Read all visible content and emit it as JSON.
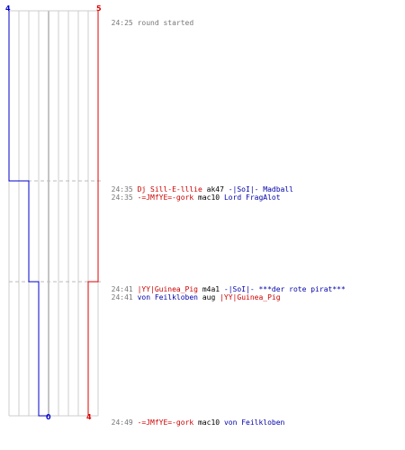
{
  "colors": {
    "team_a": "#0000cc",
    "team_b": "#dd0000",
    "grid": "#cccccc",
    "marker": "#bbbbbb"
  },
  "scores": {
    "team_a_start": "4",
    "team_b_start": "5",
    "team_a_end": "0",
    "team_b_end": "4"
  },
  "events": [
    {
      "time": "24:25",
      "kind": "info",
      "text": "round started"
    },
    {
      "time": "24:35",
      "kind": "kill",
      "killer": "Dj Sill-E-lllie",
      "killer_team": "red",
      "weapon": "ak47",
      "victim": "-|SoI|- Madball",
      "victim_team": "blue"
    },
    {
      "time": "24:35",
      "kind": "kill",
      "killer": "-=JMfYE=-gork",
      "killer_team": "red",
      "weapon": "mac10",
      "victim": "Lord FragAlot",
      "victim_team": "blue"
    },
    {
      "time": "24:41",
      "kind": "kill",
      "killer": "|YY|Guinea_Pig",
      "killer_team": "red",
      "weapon": "m4a1",
      "victim": "-|SoI|- ***der rote pirat***",
      "victim_team": "blue"
    },
    {
      "time": "24:41",
      "kind": "kill",
      "killer": "von Feilkloben",
      "killer_team": "blue",
      "weapon": "aug",
      "victim": "|YY|Guinea_Pig",
      "victim_team": "red"
    },
    {
      "time": "24:49",
      "kind": "kill",
      "killer": "-=JMfYE=-gork",
      "killer_team": "red",
      "weapon": "mac10",
      "victim": "von Feilkloben",
      "victim_team": "blue"
    }
  ]
}
